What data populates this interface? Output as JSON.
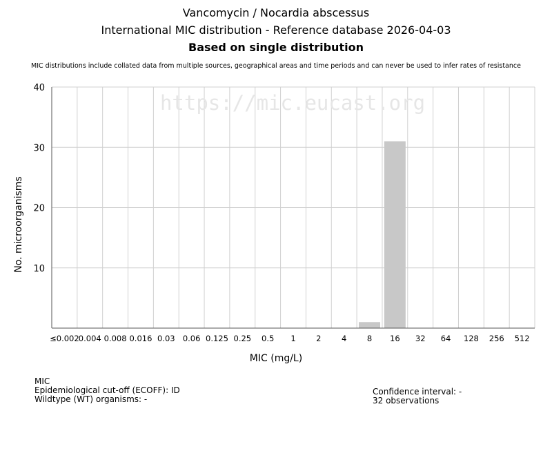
{
  "header": {
    "title": "Vancomycin / Nocardia abscessus",
    "subtitle": "International MIC distribution - Reference database 2026-04-03",
    "basis": "Based on single distribution",
    "disclaimer": "MIC distributions include collated data from multiple sources, geographical areas and time periods and can never be used to infer rates of resistance"
  },
  "watermark": "https://mic.eucast.org",
  "footer": {
    "label": "MIC",
    "ecoff": "Epidemiological cut-off (ECOFF): ID",
    "wildtype": "Wildtype (WT) organisms:  -",
    "confidence": "Confidence interval: -",
    "observations": "32 observations"
  },
  "chart_data": {
    "type": "bar",
    "xlabel": "MIC (mg/L)",
    "ylabel": "No. microorganisms",
    "ylim": [
      0,
      40
    ],
    "yticks": [
      10,
      20,
      30,
      40
    ],
    "grid": true,
    "categories": [
      "≤0.002",
      "0.004",
      "0.008",
      "0.016",
      "0.03",
      "0.06",
      "0.125",
      "0.25",
      "0.5",
      "1",
      "2",
      "4",
      "8",
      "16",
      "32",
      "64",
      "128",
      "256",
      "512"
    ],
    "values": [
      0,
      0,
      0,
      0,
      0,
      0,
      0,
      0,
      0,
      0,
      0,
      0,
      1,
      31,
      0,
      0,
      0,
      0,
      0
    ],
    "bar_color": "#c8c8c8"
  }
}
